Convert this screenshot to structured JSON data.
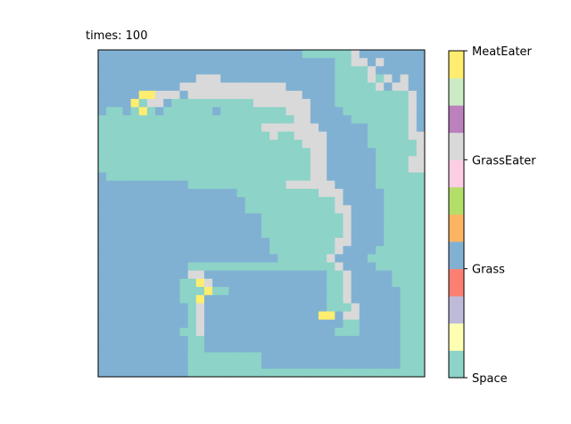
{
  "chart_data": {
    "type": "heatmap",
    "title": "times: 100",
    "xlabel": "",
    "ylabel": "",
    "grid": false,
    "grid_size": [
      40,
      40
    ],
    "colorbar": {
      "palette": [
        "#8dd3c7",
        "#ffffb3",
        "#bebada",
        "#fb8072",
        "#80b1d3",
        "#fdb462",
        "#b3de69",
        "#fccde5",
        "#d9d9d9",
        "#bc80bd",
        "#ccebc5",
        "#ffed6f"
      ],
      "ticks": [
        {
          "label": "Space",
          "value": 0
        },
        {
          "label": "Grass",
          "value": 1
        },
        {
          "label": "GrassEater",
          "value": 2
        },
        {
          "label": "MeatEater",
          "value": 3
        }
      ]
    },
    "cell_legend": {
      "S": "Space",
      "G": "Grass",
      "E": "GrassEater",
      "M": "MeatEater"
    },
    "rows": [
      "GGGGGGGGGGGGGGGGGGGGGGGGGSSSSSSEGGGGGGGG",
      "GGGGGGGGGGGGGGGGGGGGGGGGGGGGGSSEEGEGGGGG",
      "GGGGGGGGGGGGGGGGGGGGGGGGGGGGGSSSSEGGGGGG",
      "GGGGGGGGGGGGEEEGGGGGGGGGGGGGGSSSSESEGEGG",
      "GGGGGGGGGGEEEEEEEEEEEEEGGGGGGSSSSSEGEEGG",
      "GGGGGMMEEEGEEEEEEEEEEEEEEGGGGSSSSSSSSSEG",
      "GGGGMSEEGSSSSSSSSSSEEEEEEEGGGSSSSSSSSSEG",
      "GSSGSMSGSSSSSSGSSSSSSSSEEEGGGGSSSSSSSSEG",
      "SSSSSSSSSSSSSSSSSSSSSSSSEEGGGGGSSSSSSSEG",
      "SSSSSSSSSSSSSSSSSSSSEEEEEEEGGGGGGSSSSSEG",
      "SSSSSSSSSSSSSSSSSSSSSESSEEEEGGGGGSSSSSEE",
      "SSSSSSSSSSSSSSSSSSSSSSSSSEEEGGGGGSSSSSSE",
      "SSSSSSSSSSSSSSSSSSSSSSSSSSEEGGGGGGSSSSSE",
      "SSSSSSSSSSSSSSSSSSSSSSSSSSEEGGGGGGSSSSEE",
      "SSSSSSSSSSSSSSSSSSSSSSSSSSEEGGGGGGSSSSEE",
      "GSSSSSSSSSSSSSSSSSSSSSSSSSEEGGGGGGSSSSSS",
      "GGGGGGGGGGGSSSSSSSSSSSSEEEEEEGGGGGSSSSSS",
      "GGGGGGGGGGGGGGGGGSSSSSSSSSSEEEGGGGGSSSSS",
      "GGGGGGGGGGGGGGGGGGSSSSSSSSSSSEGGGGGSSSSS",
      "GGGGGGGGGGGGGGGGGGSSSSSSSSSSSEEGGGGSSSSS",
      "GGGGGGGGGGGGGGGGGGGGSSSSSSSSSSEGGGGSSSSS",
      "GGGGGGGGGGGGGGGGGGGGSSSSSSSSSSEGGGGSSSSS",
      "GGGGGGGGGGGGGGGGGGGGSSSSSSSSSSEGGGGSSSSS",
      "GGGGGGGGGGGGGGGGGGGGGSSSSSSSSEEGGGGSSSSS",
      "GGGGGGGGGGGGGGGGGGGGGSSSSSSSSEGGGGSSSSSS",
      "GGGGGGGGGGGGGGGGGGGGGGSSSSSSEGGGGSSSSSSS",
      "GGGGGGGGGGGSSSSSSSSSSSSSSSSSSEGGGGSSSSSS",
      "GGGGGGGGGGGEEGGGGGGGGGGGGGGGSSEGGGGGSSSS",
      "GGGGGGGGGGSSMEGGGGGGGGGGGGGGSSEGGGGGSSSS",
      "GGGGGGGGGGSSSMSSGGGGGGGGGGGGSSEGGGGGGSSS",
      "GGGGGGGGGGSSMGGGGGGGGGGGGGGGSSEGGGGGGSSS",
      "GGGGGGGGGGGSEGGGGGGGGGGGGGGGSSSEGGGGGSSS",
      "GGGGGGGGGGGSEGGGGGGGGGGGGGGMMGEEGGGGGSSS",
      "GGGGGGGGGGGSEGGGGGGGGGGGGGGGGGSSGGGGGSSS",
      "GGGGGGGGGGSSEGGGGGGGGGGGGGGGGSSSGGGGGSSS",
      "GGGGGGGGGGGSSGGGGGGGGGGGGGGGGGGGGGGGGSSS",
      "GGGGGGGGGGGSSGGGGGGGGGGGGGGGGGGGGGGGGSSS",
      "GGGGGGGGGGGSSSSSSSSSGGGGGGGGGGGGGGGGGSSS",
      "GGGGGGGGGGGSSSSSSSSSGGGGGGGGGGGGGGGGGSSS",
      "GGGGGGGGGGGSSSSSSSSSSSSSSSSSSSSSSSSSSSSS"
    ]
  }
}
